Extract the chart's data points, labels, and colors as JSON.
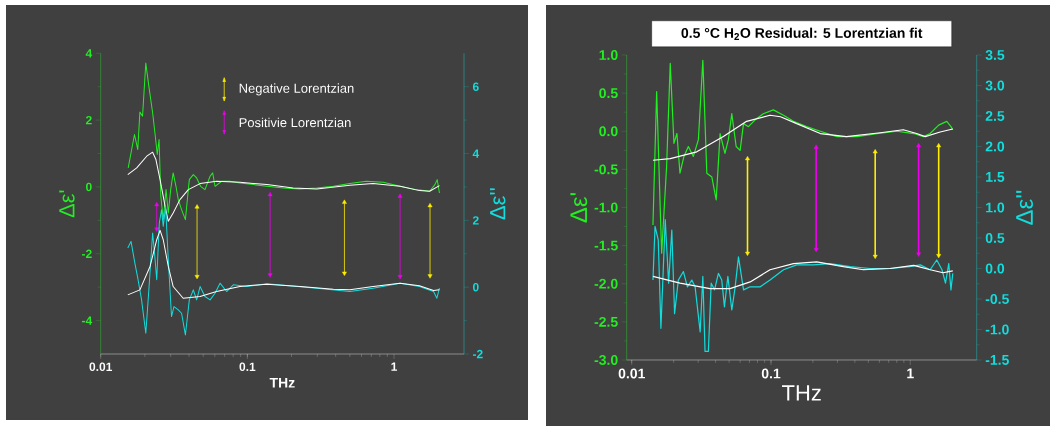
{
  "chart_data": [
    {
      "type": "line",
      "xlabel": "THz",
      "ylabel": "Δε'",
      "y2label": "Δε''",
      "log": "x",
      "legend": "top",
      "marker": "none",
      "line_style": "solid",
      "xlim": [
        0.01,
        3
      ],
      "ylim": [
        -5,
        4
      ],
      "y2lim": [
        -2,
        7
      ],
      "xticks": [
        0.01,
        0.1,
        1
      ],
      "yticks": [
        -4,
        -2,
        0,
        2,
        4
      ],
      "y2ticks": [
        -2,
        0,
        2,
        4,
        6
      ],
      "series": [
        {
          "color": "#22ee22",
          "x": [
            0.0154,
            0.017,
            0.0179,
            0.0185,
            0.0193,
            0.0203,
            0.0213,
            0.0226,
            0.0237,
            0.0243,
            0.025,
            0.0257,
            0.0267,
            0.0279,
            0.0289,
            0.03,
            0.0312,
            0.0326,
            0.0338,
            0.0356,
            0.0378,
            0.0402,
            0.0428,
            0.0451,
            0.048,
            0.0514,
            0.0557,
            0.058,
            0.0602,
            0.0669,
            0.0761,
            0.089,
            0.11,
            0.136,
            0.176,
            0.229,
            0.297,
            0.386,
            0.5,
            0.648,
            0.843,
            1.1,
            1.42,
            1.75,
            1.9,
            1.97,
            2.04
          ],
          "values": [
            0.57,
            1.57,
            1.12,
            2.24,
            2.12,
            3.71,
            3.01,
            2.22,
            1.42,
            0.97,
            1.42,
            -0.28,
            -0.98,
            -0.08,
            -0.78,
            -0.08,
            0.42,
            0.02,
            -0.38,
            -0.68,
            -0.98,
            0.22,
            0.37,
            0.27,
            0.02,
            -0.08,
            0.32,
            0.42,
            0.02,
            0.17,
            0.17,
            0.12,
            0.07,
            0.02,
            -0.03,
            -0.06,
            -0.03,
            0.02,
            0.1,
            0.17,
            0.14,
            0.02,
            -0.08,
            -0.13,
            0.07,
            0.22,
            -0.18
          ]
        },
        {
          "color": "#ffffff",
          "x": [
            0.0153,
            0.0176,
            0.0206,
            0.0226,
            0.0238,
            0.0254,
            0.0275,
            0.0289,
            0.0312,
            0.0347,
            0.0396,
            0.0476,
            0.0617,
            0.089,
            0.136,
            0.205,
            0.297,
            0.5,
            0.72,
            1.1,
            1.49,
            1.75,
            2.04
          ],
          "values": [
            0.37,
            0.57,
            0.92,
            1.04,
            0.82,
            0.22,
            -0.58,
            -1.03,
            -0.78,
            -0.38,
            -0.08,
            0.1,
            0.17,
            0.14,
            0.07,
            -0.03,
            -0.06,
            0.05,
            0.1,
            0.02,
            -0.11,
            -0.13,
            0.04
          ]
        },
        {
          "color": "#11dddd",
          "axis": "y2",
          "x": [
            0.0153,
            0.0161,
            0.0171,
            0.0179,
            0.019,
            0.0203,
            0.0213,
            0.0226,
            0.0235,
            0.0241,
            0.0251,
            0.026,
            0.0267,
            0.0277,
            0.0289,
            0.0304,
            0.0316,
            0.0338,
            0.0356,
            0.0378,
            0.0402,
            0.0428,
            0.0451,
            0.0476,
            0.0514,
            0.0557,
            0.0602,
            0.0651,
            0.0722,
            0.0802,
            0.099,
            0.136,
            0.185,
            0.297,
            0.5,
            0.72,
            1.1,
            1.49,
            1.86,
            1.96,
            2.04
          ],
          "values": [
            1.17,
            1.37,
            0.72,
            0.27,
            -0.38,
            -1.38,
            -0.08,
            1.62,
            0.82,
            0.22,
            1.92,
            2.32,
            1.82,
            2.42,
            0.82,
            -0.88,
            -0.58,
            -0.68,
            -0.78,
            -1.43,
            -0.38,
            -0.08,
            -0.38,
            0.02,
            -0.28,
            -0.38,
            -0.18,
            0.12,
            -0.13,
            0.07,
            0.02,
            0.1,
            0.05,
            -0.03,
            -0.13,
            -0.03,
            0.12,
            0.02,
            -0.13,
            -0.33,
            -0.03
          ]
        },
        {
          "color": "#ffffff",
          "axis": "y2",
          "x": [
            0.0153,
            0.0185,
            0.0217,
            0.0241,
            0.0254,
            0.0267,
            0.0289,
            0.0312,
            0.0365,
            0.0476,
            0.0617,
            0.089,
            0.136,
            0.229,
            0.386,
            0.5,
            0.72,
            1.1,
            1.49,
            1.86,
            2.04
          ],
          "values": [
            -0.23,
            -0.08,
            0.62,
            1.42,
            1.7,
            1.42,
            0.62,
            0.02,
            -0.33,
            -0.28,
            -0.13,
            0.02,
            0.09,
            0.02,
            -0.06,
            -0.08,
            0.02,
            0.12,
            0.04,
            -0.1,
            -0.08
          ]
        },
        {
          "type": "scatter",
          "marker": "triangle",
          "name": "Negative Lorentzian",
          "color": "#ffee00",
          "x": [
            0.0454,
            0.459,
            1.76
          ],
          "values": [
            -0.6,
            -0.46,
            -0.56
          ],
          "errors": [
            [
              -2.68,
              -0.6
            ],
            [
              -2.58,
              -0.46
            ],
            [
              -2.66,
              -0.56
            ]
          ]
        },
        {
          "type": "scatter",
          "marker": "triangle",
          "name": "Positivie Lorentzian",
          "color": "#ee00ee",
          "x": [
            0.0241,
            0.143,
            1.1
          ],
          "values": [
            -0.53,
            -0.23,
            -0.28
          ],
          "errors": [
            [
              -1.26,
              -0.53
            ],
            [
              -2.63,
              -0.23
            ],
            [
              -2.68,
              -0.28
            ]
          ]
        }
      ]
    },
    {
      "type": "line",
      "title": "0.5 °C H$_{2}$O Residual: 5 Lorentzian fit",
      "xlabel": "THz",
      "ylabel": "Δε'",
      "y2label": "Δε''",
      "log": "x",
      "marker": "none",
      "line_style": "solid",
      "xlim": [
        0.0092,
        3
      ],
      "ylim": [
        -3,
        1
      ],
      "y2lim": [
        -1.5,
        3.5
      ],
      "xticks": [
        0.01,
        0.1,
        1
      ],
      "yticks": [
        {
          "value": -3,
          "label": "-3.0"
        },
        -2.5,
        {
          "value": -2,
          "label": "-2.0"
        },
        -1.5,
        {
          "value": -1,
          "label": "-1.0"
        },
        -0.5,
        {
          "value": 0,
          "label": "0.0"
        },
        0.5,
        {
          "value": 1,
          "label": "1.0"
        }
      ],
      "y2ticks": [
        -1.5,
        {
          "value": -1,
          "label": "-1.0"
        },
        -0.5,
        {
          "value": 0,
          "label": "0.0"
        },
        0.5,
        {
          "value": 1,
          "label": "1.0"
        },
        1.5,
        {
          "value": 2,
          "label": "2.0"
        },
        2.5,
        {
          "value": 3,
          "label": "3.0"
        },
        3.5
      ],
      "series": [
        {
          "color": "#22ee22",
          "x": [
            0.0142,
            0.0151,
            0.016,
            0.0164,
            0.0178,
            0.0189,
            0.0201,
            0.0211,
            0.0222,
            0.0237,
            0.0255,
            0.0277,
            0.0301,
            0.0324,
            0.0346,
            0.0376,
            0.0404,
            0.0431,
            0.0467,
            0.0494,
            0.0523,
            0.0562,
            0.06,
            0.0635,
            0.0689,
            0.077,
            0.088,
            0.104,
            0.123,
            0.145,
            0.18,
            0.226,
            0.297,
            0.414,
            0.577,
            0.8,
            1.06,
            1.24,
            1.39,
            1.6,
            1.83,
            1.96,
            2.02
          ],
          "values": [
            -1.23,
            0.52,
            -0.99,
            -1.6,
            -0.46,
            0.89,
            -0.16,
            -0.03,
            -0.55,
            -0.33,
            -0.2,
            -0.33,
            -0.11,
            0.93,
            -0.55,
            -0.6,
            -0.9,
            -0.03,
            -0.29,
            -0.11,
            0.23,
            -0.2,
            -0.25,
            0.1,
            0.06,
            0.15,
            0.23,
            0.28,
            0.21,
            0.13,
            0.06,
            0.0,
            -0.07,
            -0.07,
            -0.03,
            0.0,
            -0.03,
            -0.07,
            -0.03,
            0.08,
            0.13,
            0.06,
            0.02
          ]
        },
        {
          "color": "#ffffff",
          "x": [
            0.0142,
            0.0189,
            0.0293,
            0.0455,
            0.0668,
            0.0984,
            0.117,
            0.153,
            0.226,
            0.348,
            0.61,
            0.89,
            1.11,
            1.28,
            1.64,
            2.02
          ],
          "values": [
            -0.38,
            -0.36,
            -0.27,
            -0.07,
            0.13,
            0.21,
            0.19,
            0.1,
            -0.03,
            -0.07,
            -0.02,
            0.02,
            -0.03,
            -0.07,
            -0.01,
            0.03
          ]
        },
        {
          "color": "#11dddd",
          "axis": "y2",
          "x": [
            0.0142,
            0.0147,
            0.0155,
            0.0162,
            0.0174,
            0.0184,
            0.0194,
            0.0203,
            0.0216,
            0.0235,
            0.0251,
            0.027,
            0.0285,
            0.031,
            0.0324,
            0.0336,
            0.0355,
            0.0372,
            0.0393,
            0.0419,
            0.0443,
            0.0463,
            0.049,
            0.0523,
            0.0553,
            0.0584,
            0.0635,
            0.0709,
            0.0837,
            0.0984,
            0.123,
            0.153,
            0.201,
            0.265,
            0.37,
            0.517,
            0.716,
            0.99,
            1.18,
            1.39,
            1.55,
            1.69,
            1.79,
            1.89,
            1.96,
            2.02
          ],
          "values": [
            -0.19,
            0.69,
            0.47,
            -0.98,
            0.8,
            -0.24,
            0.63,
            -0.74,
            -0.19,
            -0.05,
            -0.3,
            -0.19,
            -0.3,
            -1.04,
            -0.13,
            -1.36,
            -1.36,
            -0.24,
            -0.35,
            -0.08,
            -0.19,
            -0.63,
            -0.13,
            -0.68,
            -0.3,
            0.19,
            -0.35,
            -0.3,
            -0.3,
            -0.19,
            -0.02,
            0.06,
            0.06,
            0.08,
            0.03,
            0.0,
            0.0,
            0.03,
            0.06,
            -0.02,
            0.14,
            -0.02,
            -0.24,
            0.08,
            -0.35,
            -0.08
          ]
        },
        {
          "color": "#ffffff",
          "axis": "y2",
          "x": [
            0.0142,
            0.0222,
            0.0365,
            0.0508,
            0.0709,
            0.0984,
            0.145,
            0.213,
            0.331,
            0.46,
            0.716,
            1.06,
            1.39,
            1.72,
            2.02
          ],
          "values": [
            -0.13,
            -0.24,
            -0.33,
            -0.33,
            -0.22,
            -0.02,
            0.08,
            0.11,
            0.03,
            -0.02,
            0.0,
            0.05,
            -0.02,
            -0.07,
            -0.04
          ]
        },
        {
          "type": "scatter",
          "marker": "triangle",
          "color": "#ffee00",
          "x": [
            0.0678,
            0.56,
            1.6
          ],
          "values": [
            -0.36,
            -0.27,
            -0.19
          ],
          "errors": [
            [
              -1.6,
              -0.36
            ],
            [
              -1.64,
              -0.27
            ],
            [
              -1.63,
              -0.19
            ]
          ]
        },
        {
          "type": "scatter",
          "marker": "triangle",
          "color": "#ee00ee",
          "x": [
            0.211,
            1.148
          ],
          "values": [
            -0.21,
            -0.19
          ],
          "errors": [
            [
              -1.55,
              -0.21
            ],
            [
              -1.61,
              -0.19
            ]
          ]
        }
      ]
    }
  ]
}
